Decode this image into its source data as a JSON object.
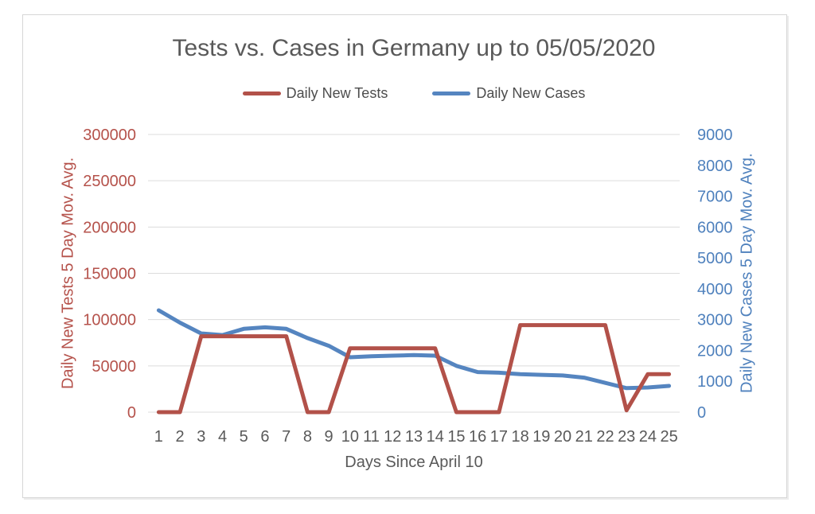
{
  "chart_data": {
    "type": "line",
    "title": "Tests vs. Cases in Germany up to 05/05/2020",
    "title_color": "#595959",
    "text_color": "#595959",
    "legend_text_color": "#4d4d4d",
    "gridline_color": "#dcdcdc",
    "legend_position": "top-center",
    "grid": true,
    "xlabel": "Days Since April 10",
    "x": [
      1,
      2,
      3,
      4,
      5,
      6,
      7,
      8,
      9,
      10,
      11,
      12,
      13,
      14,
      15,
      16,
      17,
      18,
      19,
      20,
      21,
      22,
      23,
      24,
      25
    ],
    "axes": {
      "left": {
        "label": "Daily New Tests 5 Day Mov. Avg.",
        "color": "#b5524b",
        "min": 0,
        "max": 300000,
        "ticks": [
          0,
          50000,
          100000,
          150000,
          200000,
          250000,
          300000
        ]
      },
      "right": {
        "label": "Daily New Cases 5 Day Mov. Avg.",
        "color": "#4f81bd",
        "min": 0,
        "max": 9000,
        "ticks": [
          0,
          1000,
          2000,
          3000,
          4000,
          5000,
          6000,
          7000,
          8000,
          9000
        ]
      }
    },
    "series": [
      {
        "name": "Daily New Tests",
        "axis": "left",
        "color": "#b25149",
        "values": [
          0,
          0,
          82000,
          82000,
          82000,
          82000,
          82000,
          0,
          0,
          69000,
          69000,
          69000,
          69000,
          69000,
          0,
          0,
          0,
          94000,
          94000,
          94000,
          94000,
          94000,
          2000,
          41000,
          41000
        ]
      },
      {
        "name": "Daily New Cases",
        "axis": "right",
        "color": "#5585c0",
        "values": [
          3300,
          2900,
          2550,
          2500,
          2700,
          2750,
          2700,
          2400,
          2150,
          1780,
          1810,
          1830,
          1850,
          1830,
          1500,
          1300,
          1280,
          1230,
          1210,
          1190,
          1120,
          950,
          780,
          800,
          850
        ]
      }
    ]
  }
}
